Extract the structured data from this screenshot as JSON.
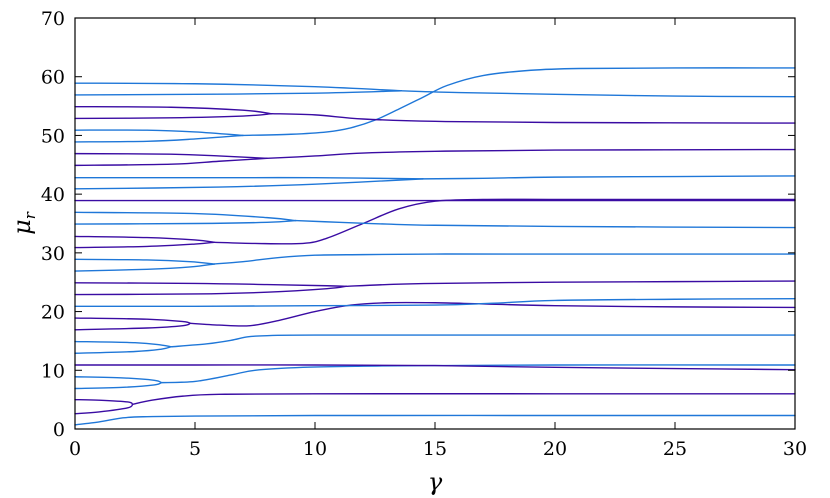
{
  "chart_data": {
    "type": "line",
    "xlabel": "γ",
    "ylabel": "μ",
    "ylabel_sub": "r",
    "xlim": [
      0,
      30
    ],
    "ylim": [
      0,
      70
    ],
    "xticks": [
      0,
      5,
      10,
      15,
      20,
      25,
      30
    ],
    "yticks": [
      0,
      10,
      20,
      30,
      40,
      50,
      60,
      70
    ],
    "grid": false,
    "colors": {
      "light": "#1f77d8",
      "dark": "#3a0ca3"
    },
    "series": [
      {
        "color": "light",
        "x": [
          0,
          1.0,
          2.0,
          3.0,
          5.0,
          10,
          20,
          30
        ],
        "y": [
          0.7,
          1.2,
          1.9,
          2.1,
          2.2,
          2.3,
          2.3,
          2.3
        ]
      },
      {
        "color": "dark",
        "x": [
          0,
          1.0,
          2.2,
          2.4
        ],
        "y": [
          2.6,
          2.9,
          3.6,
          4.2
        ]
      },
      {
        "color": "dark",
        "x": [
          0,
          1.0,
          2.2,
          2.4
        ],
        "y": [
          5.0,
          4.9,
          4.6,
          4.2
        ]
      },
      {
        "color": "dark",
        "x": [
          2.4,
          3.2,
          4.5,
          6.0,
          10,
          20,
          30
        ],
        "y": [
          4.2,
          4.9,
          5.6,
          5.9,
          6.0,
          6.0,
          6.0
        ]
      },
      {
        "color": "light",
        "x": [
          0,
          2.0,
          3.3,
          3.6
        ],
        "y": [
          6.9,
          7.1,
          7.5,
          7.9
        ]
      },
      {
        "color": "light",
        "x": [
          0,
          2.0,
          3.3,
          3.6
        ],
        "y": [
          8.9,
          8.7,
          8.3,
          7.9
        ]
      },
      {
        "color": "light",
        "x": [
          3.6,
          5.0,
          6.5,
          7.5,
          9.5,
          12,
          15,
          20,
          30
        ],
        "y": [
          7.9,
          8.1,
          9.2,
          10.0,
          10.5,
          10.7,
          10.8,
          10.9,
          10.9
        ]
      },
      {
        "color": "dark",
        "x": [
          0,
          5,
          10,
          15,
          20,
          25,
          30
        ],
        "y": [
          10.9,
          10.9,
          10.9,
          10.8,
          10.5,
          10.3,
          10.1
        ]
      },
      {
        "color": "light",
        "x": [
          0,
          2.5,
          3.6,
          4.0
        ],
        "y": [
          12.9,
          13.2,
          13.6,
          14.0
        ]
      },
      {
        "color": "light",
        "x": [
          0,
          2.5,
          3.6,
          4.0
        ],
        "y": [
          14.9,
          14.7,
          14.3,
          14.0
        ]
      },
      {
        "color": "light",
        "x": [
          4.0,
          5.5,
          6.5,
          7.2,
          8.0,
          10,
          20,
          30
        ],
        "y": [
          14.0,
          14.5,
          15.1,
          15.7,
          15.9,
          16.0,
          16.0,
          16.0
        ]
      },
      {
        "color": "dark",
        "x": [
          0,
          3.0,
          4.5,
          4.8
        ],
        "y": [
          16.9,
          17.2,
          17.6,
          18.0
        ]
      },
      {
        "color": "dark",
        "x": [
          0,
          3.0,
          4.5,
          4.8
        ],
        "y": [
          18.9,
          18.7,
          18.3,
          18.0
        ]
      },
      {
        "color": "dark",
        "x": [
          4.8,
          6.0,
          7.3,
          8.5,
          10.0,
          11.5,
          13.0,
          15.0,
          17.0,
          20.0,
          25.0,
          30.0
        ],
        "y": [
          18.0,
          17.7,
          17.6,
          18.5,
          20.0,
          21.1,
          21.5,
          21.5,
          21.3,
          21.0,
          20.8,
          20.7
        ]
      },
      {
        "color": "light",
        "x": [
          0,
          5,
          10,
          15,
          17.3,
          20,
          25,
          30
        ],
        "y": [
          20.9,
          20.9,
          21.0,
          21.1,
          21.4,
          21.9,
          22.1,
          22.2
        ]
      },
      {
        "color": "dark",
        "x": [
          0,
          5,
          8.0,
          10.5,
          11.3
        ],
        "y": [
          22.9,
          23.0,
          23.3,
          23.9,
          24.3
        ]
      },
      {
        "color": "dark",
        "x": [
          0,
          5,
          8.0,
          10.5,
          11.3
        ],
        "y": [
          24.9,
          24.8,
          24.6,
          24.4,
          24.3
        ]
      },
      {
        "color": "dark",
        "x": [
          11.3,
          13.0,
          15.0,
          20.0,
          25.0,
          30.0
        ],
        "y": [
          24.3,
          24.6,
          24.8,
          25.0,
          25.1,
          25.2
        ]
      },
      {
        "color": "light",
        "x": [
          0,
          3.0,
          4.8,
          5.8
        ],
        "y": [
          26.9,
          27.2,
          27.6,
          28.1
        ]
      },
      {
        "color": "light",
        "x": [
          0,
          3.0,
          4.8,
          5.8
        ],
        "y": [
          28.9,
          28.8,
          28.5,
          28.1
        ]
      },
      {
        "color": "light",
        "x": [
          5.8,
          7.0,
          8.5,
          10.0,
          12.0,
          15.0,
          20.0,
          30.0
        ],
        "y": [
          28.1,
          28.5,
          29.2,
          29.6,
          29.7,
          29.8,
          29.8,
          29.8
        ]
      },
      {
        "color": "dark",
        "x": [
          0,
          3.0,
          5.0,
          5.8
        ],
        "y": [
          30.9,
          31.1,
          31.5,
          31.8
        ]
      },
      {
        "color": "dark",
        "x": [
          0,
          3.0,
          5.0,
          5.8
        ],
        "y": [
          32.8,
          32.6,
          32.2,
          31.8
        ]
      },
      {
        "color": "dark",
        "x": [
          5.8,
          7.5,
          9.5,
          10.5,
          12.0,
          13.5,
          15.0,
          17.0,
          20.0,
          25.0,
          30.0
        ],
        "y": [
          31.8,
          31.6,
          31.6,
          32.5,
          35.0,
          37.5,
          38.8,
          39.1,
          39.1,
          39.1,
          39.1
        ]
      },
      {
        "color": "light",
        "x": [
          0,
          5.0,
          8.0,
          9.2
        ],
        "y": [
          34.9,
          35.0,
          35.2,
          35.5
        ]
      },
      {
        "color": "light",
        "x": [
          0,
          5.0,
          8.0,
          9.2
        ],
        "y": [
          36.9,
          36.7,
          36.0,
          35.5
        ]
      },
      {
        "color": "light",
        "x": [
          9.2,
          11.0,
          13.0,
          15.0,
          20.0,
          30.0
        ],
        "y": [
          35.5,
          35.2,
          34.9,
          34.7,
          34.5,
          34.3
        ]
      },
      {
        "color": "dark",
        "x": [
          0,
          5,
          10,
          15,
          20,
          25,
          30
        ],
        "y": [
          38.9,
          38.9,
          38.9,
          38.9,
          38.9,
          38.9,
          38.9
        ]
      },
      {
        "color": "light",
        "x": [
          0,
          6.0,
          10.0,
          14.5
        ],
        "y": [
          40.9,
          41.2,
          41.7,
          42.6
        ]
      },
      {
        "color": "light",
        "x": [
          0,
          6.0,
          10.0,
          14.5
        ],
        "y": [
          42.8,
          42.8,
          42.8,
          42.6
        ]
      },
      {
        "color": "light",
        "x": [
          14.5,
          17.0,
          20.0,
          25.0,
          30.0
        ],
        "y": [
          42.6,
          42.7,
          42.9,
          43.0,
          43.1
        ]
      },
      {
        "color": "dark",
        "x": [
          0,
          4.0,
          6.0,
          8.0
        ],
        "y": [
          44.9,
          45.1,
          45.6,
          46.1
        ]
      },
      {
        "color": "dark",
        "x": [
          0,
          4.0,
          6.0,
          8.0
        ],
        "y": [
          46.9,
          46.8,
          46.5,
          46.1
        ]
      },
      {
        "color": "dark",
        "x": [
          8.0,
          10.0,
          12.0,
          15.0,
          20.0,
          30.0
        ],
        "y": [
          46.1,
          46.5,
          47.0,
          47.3,
          47.5,
          47.6
        ]
      },
      {
        "color": "light",
        "x": [
          0,
          3.0,
          5.0,
          7.0
        ],
        "y": [
          48.9,
          49.0,
          49.4,
          50.0
        ]
      },
      {
        "color": "light",
        "x": [
          0,
          3.0,
          5.0,
          7.0
        ],
        "y": [
          50.9,
          50.9,
          50.6,
          50.0
        ]
      },
      {
        "color": "light",
        "x": [
          7.0,
          9.0,
          10.5,
          11.5,
          12.5,
          13.5,
          14.5,
          15.5,
          17.0,
          19.0,
          21.0,
          25.0,
          30.0
        ],
        "y": [
          50.0,
          50.2,
          50.6,
          51.3,
          52.6,
          54.5,
          56.5,
          58.5,
          60.2,
          61.1,
          61.4,
          61.5,
          61.5
        ]
      },
      {
        "color": "dark",
        "x": [
          0,
          4.0,
          7.0,
          8.2
        ],
        "y": [
          52.9,
          53.0,
          53.3,
          53.7
        ]
      },
      {
        "color": "dark",
        "x": [
          0,
          4.0,
          7.0,
          8.2
        ],
        "y": [
          54.9,
          54.8,
          54.3,
          53.7
        ]
      },
      {
        "color": "dark",
        "x": [
          8.2,
          10.0,
          12.0,
          15.0,
          20.0,
          30.0
        ],
        "y": [
          53.7,
          53.5,
          52.8,
          52.4,
          52.2,
          52.1
        ]
      },
      {
        "color": "light",
        "x": [
          0,
          5.0,
          10.0,
          13.6
        ],
        "y": [
          56.9,
          57.0,
          57.2,
          57.6
        ]
      },
      {
        "color": "light",
        "x": [
          0,
          5.0,
          10.0,
          13.6
        ],
        "y": [
          58.9,
          58.8,
          58.3,
          57.6
        ]
      },
      {
        "color": "light",
        "x": [
          13.6,
          16.0,
          20.0,
          25.0,
          30.0
        ],
        "y": [
          57.6,
          57.3,
          57.0,
          56.7,
          56.6
        ]
      }
    ]
  }
}
